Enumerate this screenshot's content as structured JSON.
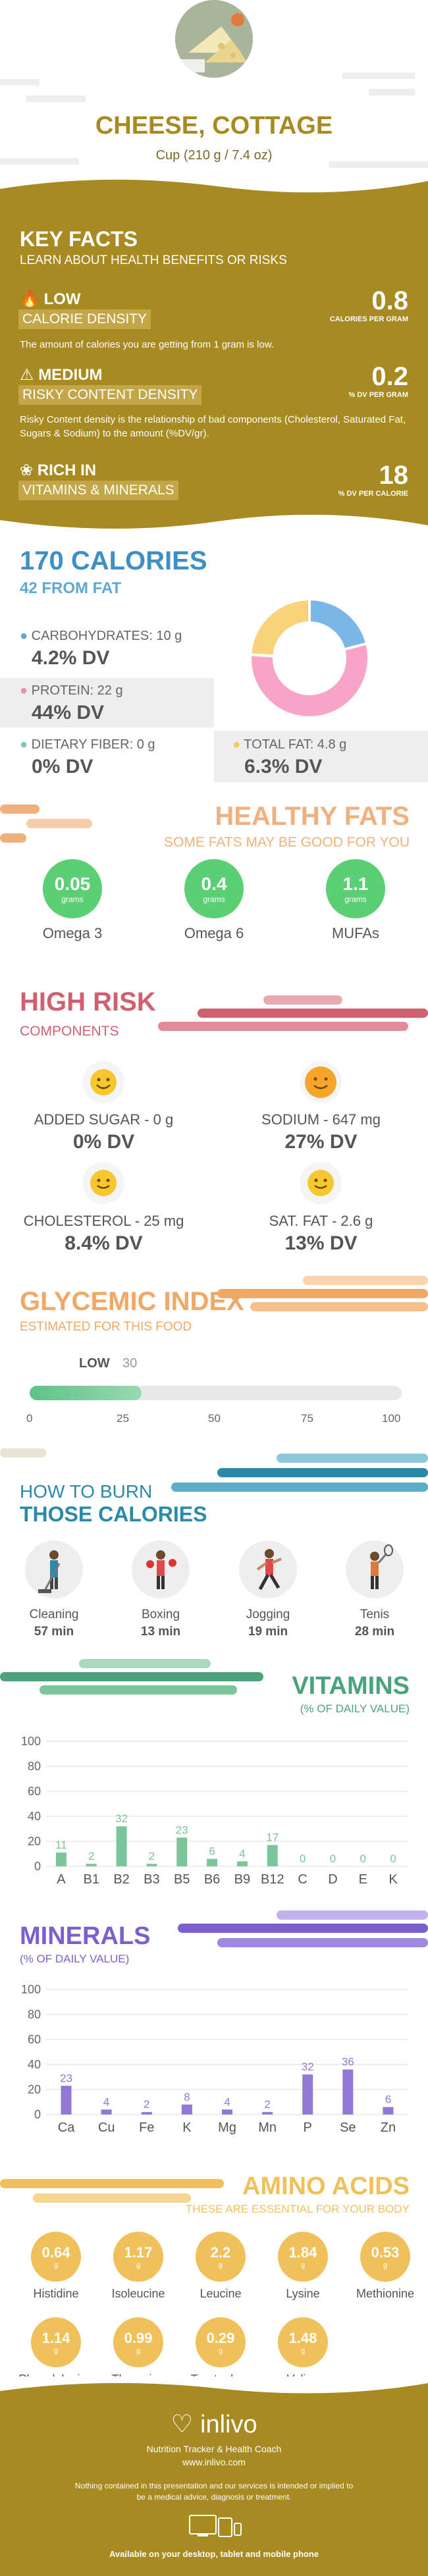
{
  "header": {
    "title": "CHEESE, COTTAGE",
    "serving": "Cup (210 g / 7.4 oz)"
  },
  "key_facts": {
    "title": "KEY FACTS",
    "subtitle": "LEARN ABOUT HEALTH BENEFITS OR RISKS",
    "items": [
      {
        "level": "LOW",
        "name": "CALORIE DENSITY",
        "value": "0.8",
        "unit": "CALORIES PER GRAM",
        "desc": "The amount of calories you are getting from 1 gram is low."
      },
      {
        "level": "MEDIUM",
        "name": "RISKY CONTENT DENSITY",
        "value": "0.2",
        "unit": "% DV PER GRAM",
        "desc": "Risky Content density is the relationship of bad components (Cholesterol, Saturated Fat, Sugars & Sodium) to the amount (%DV/gr)."
      },
      {
        "level": "RICH IN",
        "name": "VITAMINS & MINERALS",
        "value": "18",
        "unit": "% DV PER CALORIE",
        "desc": ""
      }
    ]
  },
  "calories": {
    "title": "170 CALORIES",
    "from_fat": "42 FROM FAT",
    "macros": [
      {
        "label": "CARBOHYDRATES: 10 g",
        "dv": "4.2% DV",
        "color": "#5fa8d3"
      },
      {
        "label": "PROTEIN: 22 g",
        "dv": "44% DV",
        "color": "#f28fb1"
      },
      {
        "label": "DIETARY FIBER: 0 g",
        "dv": "0% DV",
        "color": "#7fc9a4"
      },
      {
        "label": "TOTAL FAT: 4.8 g",
        "dv": "6.3% DV",
        "color": "#f7c85e"
      }
    ],
    "donut": [
      {
        "name": "carbs",
        "value": 21,
        "color": "#7cb6e6"
      },
      {
        "name": "protein",
        "value": 55,
        "color": "#f9a3c7"
      },
      {
        "name": "fat",
        "value": 24,
        "color": "#f9d27a"
      }
    ]
  },
  "fats": {
    "title": "HEALTHY FATS",
    "subtitle": "SOME FATS MAY BE GOOD FOR YOU",
    "unit": "grams",
    "items": [
      {
        "value": "0.05",
        "name": "Omega 3"
      },
      {
        "value": "0.4",
        "name": "Omega 6"
      },
      {
        "value": "1.1",
        "name": "MUFAs"
      }
    ]
  },
  "risk": {
    "title": "HIGH RISK",
    "subtitle": "COMPONENTS",
    "items": [
      {
        "label": "ADDED SUGAR - 0 g",
        "dv": "0% DV",
        "face": "#f7c72e"
      },
      {
        "label": "SODIUM - 647 mg",
        "dv": "27% DV",
        "face": "#f4a52a"
      },
      {
        "label": "CHOLESTEROL - 25 mg",
        "dv": "8.4% DV",
        "face": "#f7c72e"
      },
      {
        "label": "SAT. FAT - 2.6 g",
        "dv": "13% DV",
        "face": "#f7c72e"
      }
    ]
  },
  "gi": {
    "title": "GLYCEMIC INDEX",
    "subtitle": "ESTIMATED FOR THIS FOOD",
    "level": "LOW",
    "value": 30,
    "value_label": "30",
    "ticks": [
      "0",
      "25",
      "50",
      "75",
      "100"
    ]
  },
  "burn": {
    "title1": "HOW TO BURN",
    "title2": "THOSE CALORIES",
    "items": [
      {
        "name": "Cleaning",
        "time": "57 min"
      },
      {
        "name": "Boxing",
        "time": "13 min"
      },
      {
        "name": "Jogging",
        "time": "19 min"
      },
      {
        "name": "Tenis",
        "time": "28 min"
      }
    ]
  },
  "chart_data": [
    {
      "type": "bar",
      "title": "VITAMINS",
      "subtitle": "(% OF DAILY VALUE)",
      "categories": [
        "A",
        "B1",
        "B2",
        "B3",
        "B5",
        "B6",
        "B9",
        "B12",
        "C",
        "D",
        "E",
        "K"
      ],
      "values": [
        11,
        2,
        32,
        2,
        23,
        6,
        4,
        17,
        0,
        0,
        0,
        0
      ],
      "ylim": [
        0,
        100
      ],
      "yticks": [
        "0",
        "20",
        "40",
        "60",
        "80",
        "100"
      ],
      "color": "#7cc49a"
    },
    {
      "type": "bar",
      "title": "MINERALS",
      "subtitle": "(% OF DAILY VALUE)",
      "categories": [
        "Ca",
        "Cu",
        "Fe",
        "K",
        "Mg",
        "Mn",
        "P",
        "Se",
        "Zn"
      ],
      "values": [
        23,
        4,
        2,
        8,
        4,
        2,
        32,
        36,
        6
      ],
      "ylim": [
        0,
        100
      ],
      "yticks": [
        "0",
        "20",
        "40",
        "60",
        "80",
        "100"
      ],
      "color": "#9178d6"
    }
  ],
  "amino": {
    "title": "AMINO ACIDS",
    "subtitle": "THESE ARE ESSENTIAL FOR YOUR BODY",
    "unit": "g",
    "items": [
      {
        "value": "0.64",
        "name": "Histidine"
      },
      {
        "value": "1.17",
        "name": "Isoleucine"
      },
      {
        "value": "2.2",
        "name": "Leucine"
      },
      {
        "value": "1.84",
        "name": "Lysine"
      },
      {
        "value": "0.53",
        "name": "Methionine"
      },
      {
        "value": "1.14",
        "name": "Phenylalanine"
      },
      {
        "value": "0.99",
        "name": "Threonine"
      },
      {
        "value": "0.29",
        "name": "Tryptophan"
      },
      {
        "value": "1.48",
        "name": "Valine"
      }
    ]
  },
  "footer": {
    "brand": "inlivo",
    "tagline": "Nutrition Tracker & Health Coach",
    "url": "www.inlivo.com",
    "disclaimer": "Nothing contained in this presentation and our services is intended or implied to be a medical advice, diagnosis or treatment.",
    "available": "Available on your desktop, tablet and mobile phone"
  },
  "colors": {
    "gold": "#a88a22",
    "blue": "#3d8fc5",
    "peach": "#f0b07a",
    "red": "#d06070",
    "orange": "#f2a865",
    "teal": "#2a8aa8",
    "green": "#4aa37a",
    "purple": "#7b5fcf",
    "amber": "#f0c15a"
  }
}
